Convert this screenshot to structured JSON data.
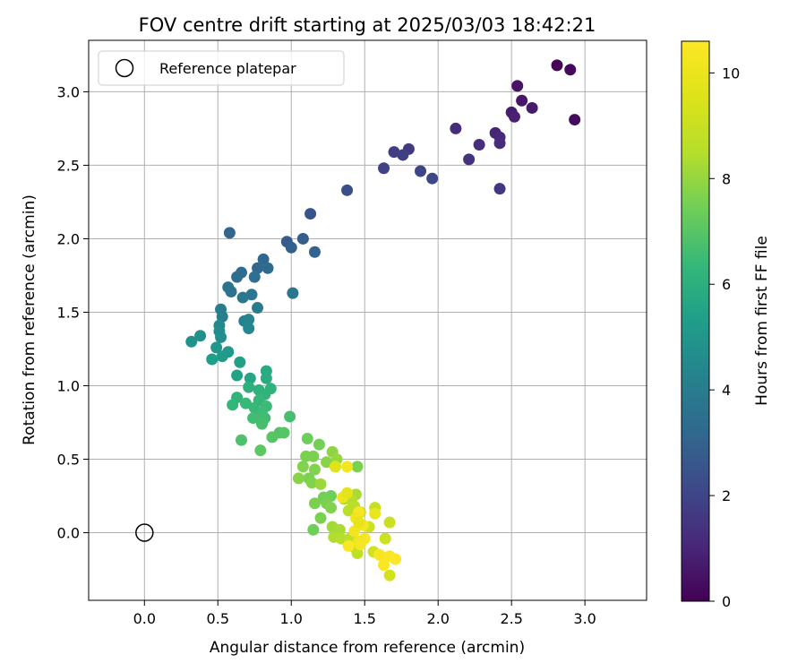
{
  "chart_data": {
    "type": "scatter",
    "title": "FOV centre drift starting at 2025/03/03 18:42:21",
    "xlabel": "Angular distance from reference (arcmin)",
    "ylabel": "Rotation from reference (arcmin)",
    "xlim": [
      -0.38,
      3.42
    ],
    "ylim": [
      -0.46,
      3.35
    ],
    "xticks": [
      0.0,
      0.5,
      1.0,
      1.5,
      2.0,
      2.5,
      3.0
    ],
    "xtick_labels": [
      "0.0",
      "0.5",
      "1.0",
      "1.5",
      "2.0",
      "2.5",
      "3.0"
    ],
    "yticks": [
      0.0,
      0.5,
      1.0,
      1.5,
      2.0,
      2.5,
      3.0
    ],
    "ytick_labels": [
      "0.0",
      "0.5",
      "1.0",
      "1.5",
      "2.0",
      "2.5",
      "3.0"
    ],
    "grid": true,
    "legend": {
      "placement": "top-left",
      "entries": [
        "Reference platepar"
      ]
    },
    "reference_point": {
      "name": "Reference platepar",
      "x": 0.0,
      "y": 0.0
    },
    "colorbar": {
      "label": "Hours from first FF file",
      "colormap": "viridis",
      "range": [
        0,
        10.6
      ],
      "ticks": [
        0,
        2,
        4,
        6,
        8,
        10
      ],
      "tick_labels": [
        "0",
        "2",
        "4",
        "6",
        "8",
        "10"
      ]
    },
    "points": [
      {
        "x": 2.81,
        "y": 3.18,
        "c": 0.1
      },
      {
        "x": 2.9,
        "y": 3.15,
        "c": 0.2
      },
      {
        "x": 2.93,
        "y": 2.81,
        "c": 0.3
      },
      {
        "x": 2.54,
        "y": 3.04,
        "c": 0.5
      },
      {
        "x": 2.57,
        "y": 2.94,
        "c": 0.6
      },
      {
        "x": 2.64,
        "y": 2.89,
        "c": 0.7
      },
      {
        "x": 2.5,
        "y": 2.86,
        "c": 0.8
      },
      {
        "x": 2.52,
        "y": 2.83,
        "c": 0.9
      },
      {
        "x": 2.39,
        "y": 2.72,
        "c": 1.0
      },
      {
        "x": 2.42,
        "y": 2.69,
        "c": 1.1
      },
      {
        "x": 2.42,
        "y": 2.65,
        "c": 1.2
      },
      {
        "x": 2.12,
        "y": 2.75,
        "c": 1.2
      },
      {
        "x": 2.28,
        "y": 2.64,
        "c": 1.3
      },
      {
        "x": 2.21,
        "y": 2.54,
        "c": 1.4
      },
      {
        "x": 2.42,
        "y": 2.34,
        "c": 1.5
      },
      {
        "x": 1.8,
        "y": 2.61,
        "c": 1.6
      },
      {
        "x": 1.7,
        "y": 2.59,
        "c": 1.7
      },
      {
        "x": 1.76,
        "y": 2.57,
        "c": 1.8
      },
      {
        "x": 1.63,
        "y": 2.48,
        "c": 1.9
      },
      {
        "x": 1.88,
        "y": 2.46,
        "c": 2.0
      },
      {
        "x": 1.96,
        "y": 2.41,
        "c": 2.1
      },
      {
        "x": 1.38,
        "y": 2.33,
        "c": 2.3
      },
      {
        "x": 1.13,
        "y": 2.17,
        "c": 2.5
      },
      {
        "x": 0.97,
        "y": 1.98,
        "c": 2.7
      },
      {
        "x": 1.08,
        "y": 2.0,
        "c": 2.8
      },
      {
        "x": 1.0,
        "y": 1.94,
        "c": 2.9
      },
      {
        "x": 1.16,
        "y": 1.91,
        "c": 3.0
      },
      {
        "x": 0.58,
        "y": 2.04,
        "c": 3.1
      },
      {
        "x": 0.81,
        "y": 1.86,
        "c": 3.2
      },
      {
        "x": 0.77,
        "y": 1.8,
        "c": 3.2
      },
      {
        "x": 0.84,
        "y": 1.8,
        "c": 3.3
      },
      {
        "x": 0.66,
        "y": 1.77,
        "c": 3.4
      },
      {
        "x": 0.63,
        "y": 1.74,
        "c": 3.4
      },
      {
        "x": 0.75,
        "y": 1.74,
        "c": 3.5
      },
      {
        "x": 0.57,
        "y": 1.67,
        "c": 3.6
      },
      {
        "x": 0.59,
        "y": 1.64,
        "c": 3.6
      },
      {
        "x": 1.01,
        "y": 1.63,
        "c": 3.7
      },
      {
        "x": 0.73,
        "y": 1.62,
        "c": 3.7
      },
      {
        "x": 0.67,
        "y": 1.6,
        "c": 3.8
      },
      {
        "x": 0.77,
        "y": 1.53,
        "c": 3.9
      },
      {
        "x": 0.52,
        "y": 1.52,
        "c": 4.0
      },
      {
        "x": 0.53,
        "y": 1.47,
        "c": 4.1
      },
      {
        "x": 0.68,
        "y": 1.44,
        "c": 4.2
      },
      {
        "x": 0.71,
        "y": 1.45,
        "c": 4.3
      },
      {
        "x": 0.71,
        "y": 1.39,
        "c": 4.4
      },
      {
        "x": 0.51,
        "y": 1.41,
        "c": 4.5
      },
      {
        "x": 0.51,
        "y": 1.37,
        "c": 4.6
      },
      {
        "x": 0.52,
        "y": 1.33,
        "c": 4.7
      },
      {
        "x": 0.38,
        "y": 1.34,
        "c": 4.8
      },
      {
        "x": 0.32,
        "y": 1.3,
        "c": 4.9
      },
      {
        "x": 0.49,
        "y": 1.26,
        "c": 5.0
      },
      {
        "x": 0.57,
        "y": 1.23,
        "c": 5.1
      },
      {
        "x": 0.53,
        "y": 1.2,
        "c": 5.2
      },
      {
        "x": 0.46,
        "y": 1.18,
        "c": 5.3
      },
      {
        "x": 0.65,
        "y": 1.16,
        "c": 5.4
      },
      {
        "x": 0.63,
        "y": 1.07,
        "c": 5.5
      },
      {
        "x": 0.72,
        "y": 1.05,
        "c": 5.6
      },
      {
        "x": 0.83,
        "y": 1.1,
        "c": 5.8
      },
      {
        "x": 0.83,
        "y": 1.05,
        "c": 5.9
      },
      {
        "x": 0.71,
        "y": 0.99,
        "c": 6.0
      },
      {
        "x": 0.78,
        "y": 0.97,
        "c": 6.1
      },
      {
        "x": 0.86,
        "y": 0.98,
        "c": 6.1
      },
      {
        "x": 0.82,
        "y": 0.94,
        "c": 6.2
      },
      {
        "x": 0.63,
        "y": 0.92,
        "c": 6.2
      },
      {
        "x": 0.78,
        "y": 0.9,
        "c": 6.3
      },
      {
        "x": 0.6,
        "y": 0.87,
        "c": 6.3
      },
      {
        "x": 0.69,
        "y": 0.88,
        "c": 6.4
      },
      {
        "x": 0.75,
        "y": 0.85,
        "c": 6.4
      },
      {
        "x": 0.83,
        "y": 0.86,
        "c": 6.5
      },
      {
        "x": 0.8,
        "y": 0.81,
        "c": 6.5
      },
      {
        "x": 0.74,
        "y": 0.78,
        "c": 6.6
      },
      {
        "x": 0.82,
        "y": 0.78,
        "c": 6.6
      },
      {
        "x": 0.99,
        "y": 0.79,
        "c": 6.7
      },
      {
        "x": 0.8,
        "y": 0.74,
        "c": 6.7
      },
      {
        "x": 0.66,
        "y": 0.63,
        "c": 6.8
      },
      {
        "x": 0.92,
        "y": 0.68,
        "c": 6.9
      },
      {
        "x": 0.95,
        "y": 0.68,
        "c": 7.0
      },
      {
        "x": 0.87,
        "y": 0.65,
        "c": 7.0
      },
      {
        "x": 0.79,
        "y": 0.56,
        "c": 7.1
      },
      {
        "x": 1.11,
        "y": 0.64,
        "c": 7.4
      },
      {
        "x": 1.19,
        "y": 0.6,
        "c": 7.5
      },
      {
        "x": 1.1,
        "y": 0.52,
        "c": 7.6
      },
      {
        "x": 1.15,
        "y": 0.52,
        "c": 7.6
      },
      {
        "x": 1.08,
        "y": 0.45,
        "c": 7.7
      },
      {
        "x": 1.16,
        "y": 0.43,
        "c": 7.7
      },
      {
        "x": 1.24,
        "y": 0.48,
        "c": 7.8
      },
      {
        "x": 1.28,
        "y": 0.55,
        "c": 7.9
      },
      {
        "x": 1.31,
        "y": 0.5,
        "c": 8.0
      },
      {
        "x": 1.3,
        "y": 0.45,
        "c": 8.0
      },
      {
        "x": 1.12,
        "y": 0.37,
        "c": 7.6
      },
      {
        "x": 1.05,
        "y": 0.37,
        "c": 7.8
      },
      {
        "x": 1.14,
        "y": 0.34,
        "c": 7.7
      },
      {
        "x": 1.2,
        "y": 0.33,
        "c": 8.1
      },
      {
        "x": 1.45,
        "y": 0.45,
        "c": 7.6
      },
      {
        "x": 1.27,
        "y": 0.25,
        "c": 7.4
      },
      {
        "x": 1.22,
        "y": 0.24,
        "c": 7.5
      },
      {
        "x": 1.24,
        "y": 0.2,
        "c": 7.6
      },
      {
        "x": 1.16,
        "y": 0.2,
        "c": 7.6
      },
      {
        "x": 1.27,
        "y": 0.17,
        "c": 7.7
      },
      {
        "x": 1.36,
        "y": 0.23,
        "c": 8.1
      },
      {
        "x": 1.44,
        "y": 0.26,
        "c": 8.3
      },
      {
        "x": 1.41,
        "y": 0.22,
        "c": 8.5
      },
      {
        "x": 1.43,
        "y": 0.18,
        "c": 8.6
      },
      {
        "x": 1.39,
        "y": 0.15,
        "c": 8.6
      },
      {
        "x": 1.47,
        "y": 0.14,
        "c": 8.7
      },
      {
        "x": 1.2,
        "y": 0.1,
        "c": 7.6
      },
      {
        "x": 1.15,
        "y": 0.02,
        "c": 7.4
      },
      {
        "x": 1.28,
        "y": 0.04,
        "c": 8.2
      },
      {
        "x": 1.33,
        "y": 0.02,
        "c": 8.3
      },
      {
        "x": 1.29,
        "y": -0.03,
        "c": 8.4
      },
      {
        "x": 1.34,
        "y": -0.04,
        "c": 8.5
      },
      {
        "x": 1.4,
        "y": -0.04,
        "c": 8.7
      },
      {
        "x": 1.43,
        "y": -0.1,
        "c": 8.8
      },
      {
        "x": 1.45,
        "y": -0.14,
        "c": 8.8
      },
      {
        "x": 1.57,
        "y": 0.17,
        "c": 8.9
      },
      {
        "x": 1.67,
        "y": 0.07,
        "c": 9.0
      },
      {
        "x": 1.53,
        "y": 0.04,
        "c": 9.1
      },
      {
        "x": 1.64,
        "y": -0.04,
        "c": 9.1
      },
      {
        "x": 1.56,
        "y": -0.13,
        "c": 9.2
      },
      {
        "x": 1.67,
        "y": -0.29,
        "c": 9.3
      },
      {
        "x": 1.3,
        "y": 0.45,
        "c": 9.6
      },
      {
        "x": 1.38,
        "y": 0.45,
        "c": 10.3
      },
      {
        "x": 1.35,
        "y": 0.24,
        "c": 10.1
      },
      {
        "x": 1.38,
        "y": 0.27,
        "c": 9.8
      },
      {
        "x": 1.46,
        "y": 0.14,
        "c": 10.4
      },
      {
        "x": 1.44,
        "y": 0.1,
        "c": 10.2
      },
      {
        "x": 1.57,
        "y": 0.13,
        "c": 10.0
      },
      {
        "x": 1.49,
        "y": 0.05,
        "c": 10.3
      },
      {
        "x": 1.43,
        "y": 0.01,
        "c": 10.2
      },
      {
        "x": 1.5,
        "y": -0.04,
        "c": 10.4
      },
      {
        "x": 1.46,
        "y": -0.06,
        "c": 10.1
      },
      {
        "x": 1.39,
        "y": -0.09,
        "c": 10.5
      },
      {
        "x": 1.47,
        "y": -0.08,
        "c": 10.3
      },
      {
        "x": 1.6,
        "y": -0.15,
        "c": 10.5
      },
      {
        "x": 1.63,
        "y": -0.17,
        "c": 10.4
      },
      {
        "x": 1.67,
        "y": -0.16,
        "c": 10.5
      },
      {
        "x": 1.71,
        "y": -0.18,
        "c": 10.6
      },
      {
        "x": 1.63,
        "y": -0.22,
        "c": 10.5
      },
      {
        "x": 1.46,
        "y": 0.07,
        "c": 9.9
      }
    ]
  }
}
